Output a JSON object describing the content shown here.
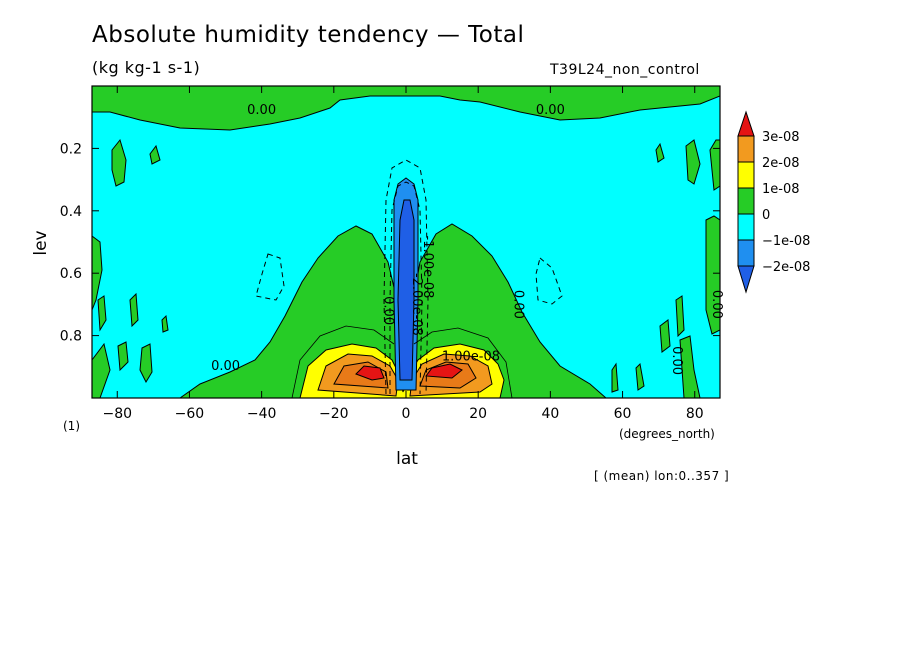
{
  "header": {
    "title": "Absolute humidity tendency — Total",
    "units": "(kg kg-1 s-1)",
    "run_name": "T39L24_non_control",
    "mean_note": "[ (mean) lon:0..357 ]"
  },
  "chart_data": {
    "type": "heatmap",
    "title": "Absolute humidity tendency — Total",
    "units": "(kg kg-1 s-1)",
    "xlabel": "lat",
    "xunit": "(degrees_north)",
    "ylabel": "lev",
    "yunit": "(1)",
    "xlim": [
      -87,
      87
    ],
    "ylim": [
      1.0,
      0.0
    ],
    "y_inverted": true,
    "xticks": [
      "-80",
      "-60",
      "-40",
      "-20",
      "0",
      "20",
      "40",
      "60",
      "80"
    ],
    "yticks": [
      "0.2",
      "0.4",
      "0.6",
      "0.8"
    ],
    "colorbar": {
      "labels": [
        "3e-08",
        "2e-08",
        "1e-08",
        "0",
        "−1e-08",
        "−2e-08"
      ],
      "levels": [
        3e-08,
        2e-08,
        1e-08,
        0,
        -1e-08,
        -2e-08
      ],
      "colors": [
        "#e51414",
        "#f29a1f",
        "#ffff00",
        "#26cc26",
        "#00ffff",
        "#1f8ff0",
        "#1f5fe6"
      ]
    },
    "contour_labels": [
      {
        "text": "0.00",
        "lat": -40,
        "lev": 0.09
      },
      {
        "text": "0.00",
        "lat": 40,
        "lev": 0.09
      },
      {
        "text": "0.00",
        "lat": -50,
        "lev": 0.91
      },
      {
        "text": "0.00",
        "lat": -6,
        "lev": 0.72
      },
      {
        "text": "0.00",
        "lat": 30,
        "lev": 0.7
      },
      {
        "text": "0.00",
        "lat": 85,
        "lev": 0.7
      },
      {
        "text": "0.00",
        "lat": 74,
        "lev": 0.88
      },
      {
        "text": "-2.00e-08",
        "lat": 2,
        "lev": 0.7
      },
      {
        "text": "-1.00e-08",
        "lat": 5,
        "lev": 0.58
      },
      {
        "text": "1.00e-08",
        "lat": 18,
        "lev": 0.88
      }
    ]
  }
}
